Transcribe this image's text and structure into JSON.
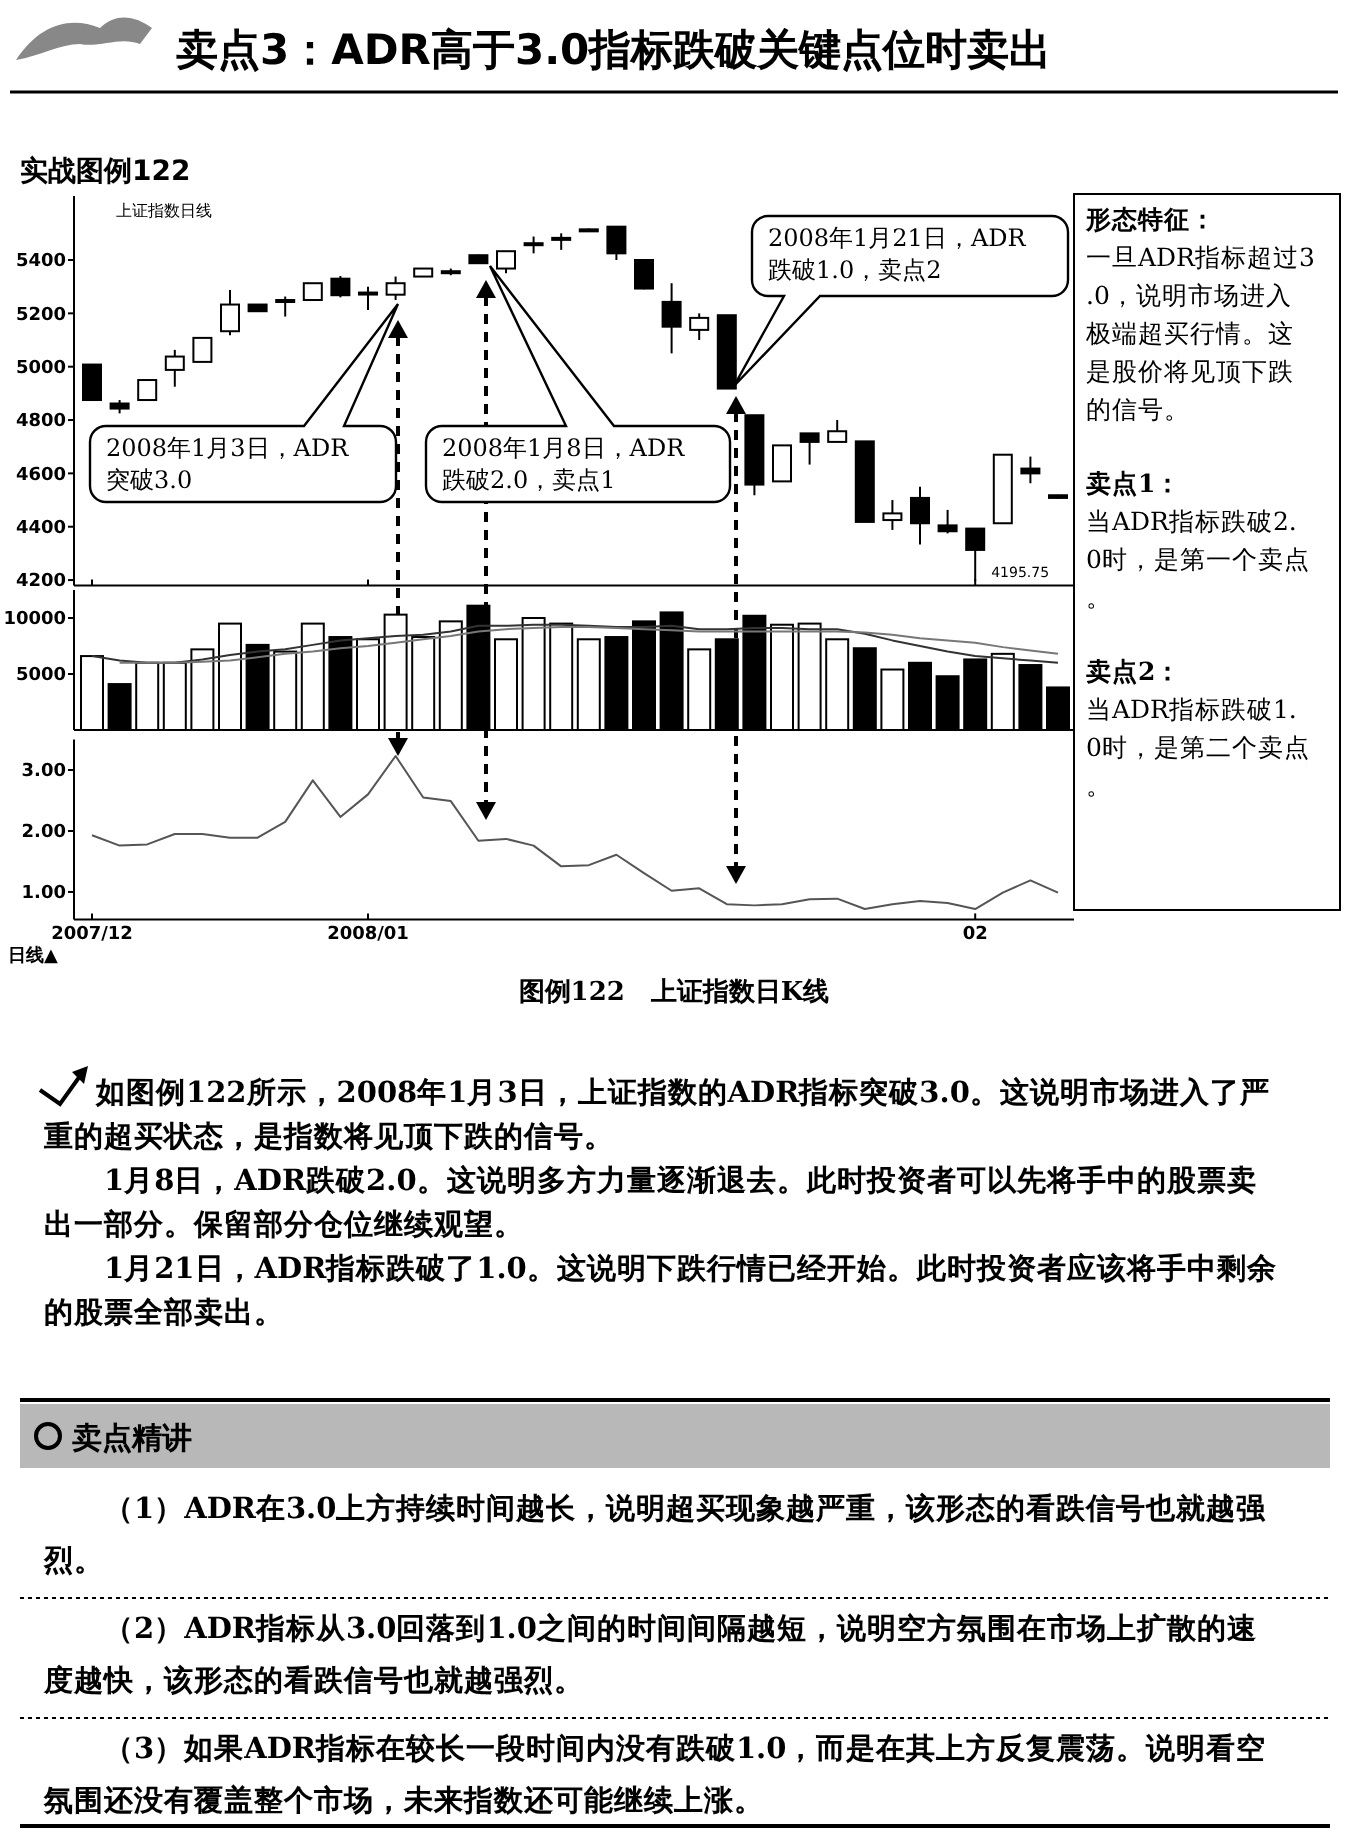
{
  "chart_data": [
    {
      "type": "candlestick",
      "title": "卖点3：ADR高于3.0指标跌破关键点位时卖出",
      "subtitle": "实战图例122",
      "categories": [
        "2007/12",
        null,
        null,
        null,
        null,
        null,
        null,
        null,
        null,
        null,
        "2008/01",
        null,
        null,
        null,
        null,
        null,
        null,
        null,
        null,
        null,
        null,
        null,
        null,
        null,
        null,
        null,
        null,
        null,
        null,
        null,
        null,
        null,
        "02",
        null,
        null,
        null
      ],
      "ohlc": [
        [
          5008,
          5008,
          4875,
          4875
        ],
        [
          4862,
          4875,
          4825,
          4843
        ],
        [
          4875,
          4950,
          4875,
          4950
        ],
        [
          4988,
          5063,
          4925,
          5038
        ],
        [
          5018,
          5108,
          5018,
          5108
        ],
        [
          5133,
          5288,
          5118,
          5233
        ],
        [
          5233,
          5233,
          5208,
          5208
        ],
        [
          5250,
          5263,
          5188,
          5245
        ],
        [
          5250,
          5313,
          5250,
          5313
        ],
        [
          5330,
          5340,
          5260,
          5268
        ],
        [
          5275,
          5300,
          5213,
          5278
        ],
        [
          5270,
          5338,
          5250,
          5313
        ],
        [
          5338,
          5368,
          5338,
          5368
        ],
        [
          5355,
          5368,
          5343,
          5358
        ],
        [
          5418,
          5420,
          5385,
          5388
        ],
        [
          5368,
          5433,
          5350,
          5433
        ],
        [
          5460,
          5488,
          5425,
          5463
        ],
        [
          5480,
          5500,
          5438,
          5483
        ],
        [
          5515,
          5518,
          5505,
          5508
        ],
        [
          5525,
          5525,
          5400,
          5425
        ],
        [
          5400,
          5400,
          5290,
          5293
        ],
        [
          5243,
          5313,
          5050,
          5150
        ],
        [
          5138,
          5200,
          5100,
          5183
        ],
        [
          5193,
          5193,
          4918,
          4918
        ],
        [
          4818,
          4818,
          4518,
          4558
        ],
        [
          4570,
          4705,
          4570,
          4705
        ],
        [
          4750,
          4750,
          4633,
          4718
        ],
        [
          4718,
          4800,
          4718,
          4758
        ],
        [
          4720,
          4720,
          4418,
          4418
        ],
        [
          4425,
          4500,
          4388,
          4450
        ],
        [
          4508,
          4550,
          4333,
          4413
        ],
        [
          4405,
          4463,
          4375,
          4383
        ],
        [
          4393,
          4393,
          4195.75,
          4313
        ],
        [
          4413,
          4670,
          4413,
          4670
        ],
        [
          4618,
          4663,
          4563,
          4600
        ],
        [
          4518,
          4520,
          4505,
          4508
        ]
      ],
      "ylim": [
        4180,
        5640
      ],
      "yticks": [
        4200,
        4400,
        4600,
        4800,
        5000,
        5200,
        5400
      ],
      "tick_labels": "y",
      "annotations": [
        "上证指数日线",
        "2008年1月3日，ADR突破3.0",
        "2008年1月8日，ADR跌破2.0，卖点1",
        "2008年1月21日，ADR跌破1.0，卖点2",
        "4195.75",
        "图例122　上证指数日K线"
      ]
    },
    {
      "type": "bar",
      "categories": [
        "2007/12",
        null,
        null,
        null,
        null,
        null,
        null,
        null,
        null,
        null,
        "2008/01",
        null,
        null,
        null,
        null,
        null,
        null,
        null,
        null,
        null,
        null,
        null,
        null,
        null,
        null,
        null,
        null,
        null,
        null,
        null,
        null,
        null,
        "02",
        null,
        null,
        null
      ],
      "series": [
        {
          "values": [
            6600,
            4100,
            6000,
            6000,
            7200,
            9500,
            7600,
            7000,
            9500,
            8300,
            8100,
            10300,
            8300,
            9700,
            11100,
            8100,
            10000,
            9500,
            8100,
            8300,
            9700,
            10500,
            7200,
            8100,
            10200,
            9400,
            9500,
            8100,
            7300,
            5400,
            6000,
            4800,
            6300,
            6800,
            5800,
            3800
          ],
          "colors": [
            "#ffffff",
            "#000000",
            "#ffffff",
            "#ffffff",
            "#ffffff",
            "#ffffff",
            "#000000",
            "#ffffff",
            "#ffffff",
            "#000000",
            "#ffffff",
            "#ffffff",
            "#ffffff",
            "#ffffff",
            "#000000",
            "#ffffff",
            "#ffffff",
            "#ffffff",
            "#ffffff",
            "#000000",
            "#000000",
            "#000000",
            "#ffffff",
            "#000000",
            "#000000",
            "#ffffff",
            "#ffffff",
            "#ffffff",
            "#000000",
            "#ffffff",
            "#000000",
            "#000000",
            "#000000",
            "#ffffff",
            "#000000",
            "#000000"
          ]
        },
        {
          "type": "line",
          "color": "#333333",
          "values": [
            6600,
            6200,
            6000,
            6000,
            6300,
            6700,
            7000,
            7200,
            7600,
            8000,
            8200,
            8400,
            8500,
            8800,
            9300,
            9300,
            9400,
            9400,
            9300,
            9200,
            9200,
            9300,
            9000,
            9000,
            9100,
            9100,
            9000,
            9000,
            8600,
            8000,
            7500,
            7000,
            6600,
            6400,
            6200,
            6000
          ]
        },
        {
          "type": "line",
          "color": "#777777",
          "values": [
            null,
            6000,
            6000,
            6000,
            6100,
            6200,
            6500,
            6800,
            7000,
            7300,
            7500,
            7800,
            8100,
            8400,
            8800,
            9000,
            9100,
            9200,
            9200,
            9100,
            9000,
            8900,
            8800,
            8800,
            8800,
            8800,
            8800,
            8800,
            8700,
            8500,
            8200,
            8000,
            7800,
            7400,
            7100,
            6800
          ]
        }
      ],
      "ylim": [
        0,
        12500
      ],
      "yticks": [
        5000,
        10000
      ],
      "tick_labels": "y"
    },
    {
      "type": "line",
      "xlabel": "日线▲",
      "categories": [
        "2007/12",
        null,
        null,
        null,
        null,
        null,
        null,
        null,
        null,
        null,
        "2008/01",
        null,
        null,
        null,
        null,
        null,
        null,
        null,
        null,
        null,
        null,
        null,
        null,
        null,
        null,
        null,
        null,
        null,
        null,
        null,
        null,
        null,
        "02",
        null,
        null,
        null
      ],
      "values": [
        1.93,
        1.76,
        1.78,
        1.95,
        1.95,
        1.89,
        1.89,
        2.15,
        2.83,
        2.23,
        2.6,
        3.23,
        2.55,
        2.49,
        1.84,
        1.87,
        1.76,
        1.42,
        1.44,
        1.61,
        1.31,
        1.02,
        1.06,
        0.8,
        0.78,
        0.8,
        0.88,
        0.89,
        0.72,
        0.8,
        0.85,
        0.82,
        0.72,
        0.99,
        1.19,
        0.99
      ],
      "color": "#555555",
      "ylim": [
        0.55,
        3.5
      ],
      "yticks": [
        {
          "value": 1,
          "label": "1.00"
        },
        {
          "value": 2,
          "label": "2.00"
        },
        {
          "value": 3,
          "label": "3.00"
        }
      ]
    },
    {
      "type": "other",
      "annotations": [
        "形态特征：",
        "一旦ADR指标超过3.0，说明市场进入极端超买行情。这是股价将见顶下跌的信号。",
        "卖点1：",
        "当ADR指标跌破2.0时，是第一个卖点。",
        "卖点2：",
        "当ADR指标跌破1.0时，是第二个卖点。"
      ]
    },
    {
      "type": "other",
      "annotations": [
        "如图例122所示，2008年1月3日，上证指数的ADR指标突破3.0。这说明市场进入了严重的超买状态，是指数将见顶下跌的信号。",
        "1月8日，ADR跌破2.0。这说明多方力量逐渐退去。此时投资者可以先将手中的股票卖出一部分。保留部分仓位继续观望。",
        "1月21日，ADR指标跌破了1.0。这说明下跌行情已经开始。此时投资者应该将手中剩余的股票全部卖出。"
      ]
    },
    {
      "type": "other",
      "title": "卖点精讲",
      "annotations": [
        "（1）ADR在3.0上方持续时间越长，说明超买现象越严重，该形态的看跌信号也就越强烈。",
        "（2）ADR指标从3.0回落到1.0之间的时间间隔越短，说明空方氛围在市场上扩散的速度越快，该形态的看跌信号也就越强烈。",
        "（3）如果ADR指标在较长一段时间内没有跌破1.0，而是在其上方反复震荡。说明看空氛围还没有覆盖整个市场，未来指数还可能继续上涨。"
      ]
    }
  ]
}
